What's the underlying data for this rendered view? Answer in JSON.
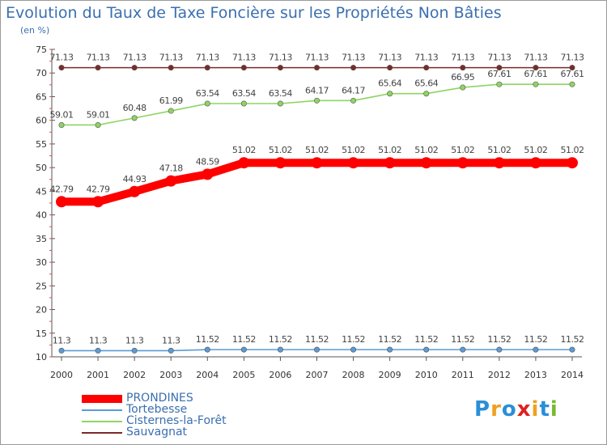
{
  "title": "Evolution du Taux de Taxe Foncière sur les Propriétés Non Bâties",
  "subtitle": "(en %)",
  "logo": {
    "text": "Proxiti",
    "colors": [
      "#2a8fd6",
      "#f0a020",
      "#2a8fd6",
      "#e02020",
      "#f0a020",
      "#2a8fd6",
      "#7ab830"
    ]
  },
  "chart_data": {
    "type": "line",
    "x": [
      2000,
      2001,
      2002,
      2003,
      2004,
      2005,
      2006,
      2007,
      2008,
      2009,
      2010,
      2011,
      2012,
      2013,
      2014
    ],
    "ylim": [
      10,
      75
    ],
    "yticks": [
      10,
      15,
      20,
      25,
      30,
      35,
      40,
      45,
      50,
      55,
      60,
      65,
      70,
      75
    ],
    "grid": false,
    "legend_position": "bottom-left",
    "series": [
      {
        "name": "PRONDINES",
        "color": "#ff0000",
        "bold": true,
        "values": [
          42.79,
          42.79,
          44.93,
          47.18,
          48.59,
          51.02,
          51.02,
          51.02,
          51.02,
          51.02,
          51.02,
          51.02,
          51.02,
          51.02,
          51.02
        ],
        "labels": [
          "42.79",
          "42.79",
          "44.93",
          "47.18",
          "48.59",
          "51.02",
          "51.02",
          "51.02",
          "51.02",
          "51.02",
          "51.02",
          "51.02",
          "51.02",
          "51.02",
          "51.02"
        ]
      },
      {
        "name": "Tortebesse",
        "color": "#5b9bd5",
        "values": [
          11.3,
          11.3,
          11.3,
          11.3,
          11.52,
          11.52,
          11.52,
          11.52,
          11.52,
          11.52,
          11.52,
          11.52,
          11.52,
          11.52,
          11.52
        ],
        "labels": [
          "11.3",
          "11.3",
          "11.3",
          "11.3",
          "11.52",
          "11.52",
          "11.52",
          "11.52",
          "11.52",
          "11.52",
          "11.52",
          "11.52",
          "11.52",
          "11.52",
          "11.52"
        ]
      },
      {
        "name": "Cisternes-la-Forêt",
        "color": "#8fd463",
        "values": [
          59.01,
          59.01,
          60.48,
          61.99,
          63.54,
          63.54,
          63.54,
          64.17,
          64.17,
          65.64,
          65.64,
          66.95,
          67.61,
          67.61,
          67.61
        ],
        "labels": [
          "59.01",
          "59.01",
          "60.48",
          "61.99",
          "63.54",
          "63.54",
          "63.54",
          "64.17",
          "64.17",
          "65.64",
          "65.64",
          "66.95",
          "67.61",
          "67.61",
          "67.61"
        ]
      },
      {
        "name": "Sauvagnat",
        "color": "#7b2a2a",
        "values": [
          71.13,
          71.13,
          71.13,
          71.13,
          71.13,
          71.13,
          71.13,
          71.13,
          71.13,
          71.13,
          71.13,
          71.13,
          71.13,
          71.13,
          71.13
        ],
        "labels": [
          "71.13",
          "71.13",
          "71.13",
          "71.13",
          "71.13",
          "71.13",
          "71.13",
          "71.13",
          "71.13",
          "71.13",
          "71.13",
          "71.13",
          "71.13",
          "71.13",
          "71.13"
        ]
      }
    ]
  }
}
